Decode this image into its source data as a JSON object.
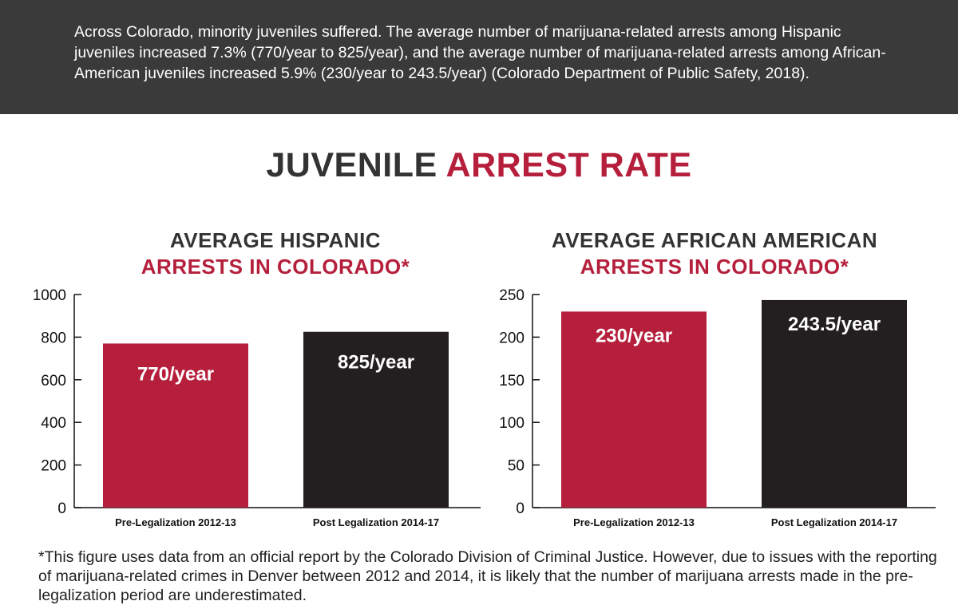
{
  "banner": {
    "text": "Across Colorado, minority juveniles suffered. The average number of marijuana-related arrests among Hispanic juveniles increased 7.3% (770/year to 825/year), and the average number of marijuana-related arrests among African-American juveniles increased 5.9% (230/year to 243.5/year) (Colorado Department of Public Safety, 2018)."
  },
  "title": {
    "part1": "JUVENILE",
    "part2": "ARREST RATE"
  },
  "colors": {
    "accent": "#b51f3c",
    "dark": "#231f20",
    "banner": "#3a3a3a"
  },
  "chart_data": [
    {
      "type": "bar",
      "title_line1": "AVERAGE HISPANIC",
      "title_line2": "ARRESTS IN COLORADO*",
      "categories": [
        "Pre-Legalization 2012-13",
        "Post Legalization 2014-17"
      ],
      "values": [
        770,
        825
      ],
      "data_labels": [
        "770/year",
        "825/year"
      ],
      "bar_colors": [
        "#b51f3c",
        "#231f20"
      ],
      "ylim": [
        0,
        1000
      ],
      "yticks": [
        0,
        200,
        400,
        600,
        800,
        1000
      ],
      "xlabel": "",
      "ylabel": ""
    },
    {
      "type": "bar",
      "title_line1": "AVERAGE AFRICAN AMERICAN",
      "title_line2": "ARRESTS IN COLORADO*",
      "categories": [
        "Pre-Legalization 2012-13",
        "Post Legalization 2014-17"
      ],
      "values": [
        230,
        243.5
      ],
      "data_labels": [
        "230/year",
        "243.5/year"
      ],
      "bar_colors": [
        "#b51f3c",
        "#231f20"
      ],
      "ylim": [
        0,
        250
      ],
      "yticks": [
        0,
        50,
        100,
        150,
        200,
        250
      ],
      "xlabel": "",
      "ylabel": ""
    }
  ],
  "footnote": {
    "text": "*This figure uses data from an official report by the Colorado Division of Criminal Justice. However, due to issues with the reporting of marijuana-related crimes in Denver between 2012 and 2014, it is likely that the number of marijuana arrests made in the pre-legalization period are underestimated."
  }
}
